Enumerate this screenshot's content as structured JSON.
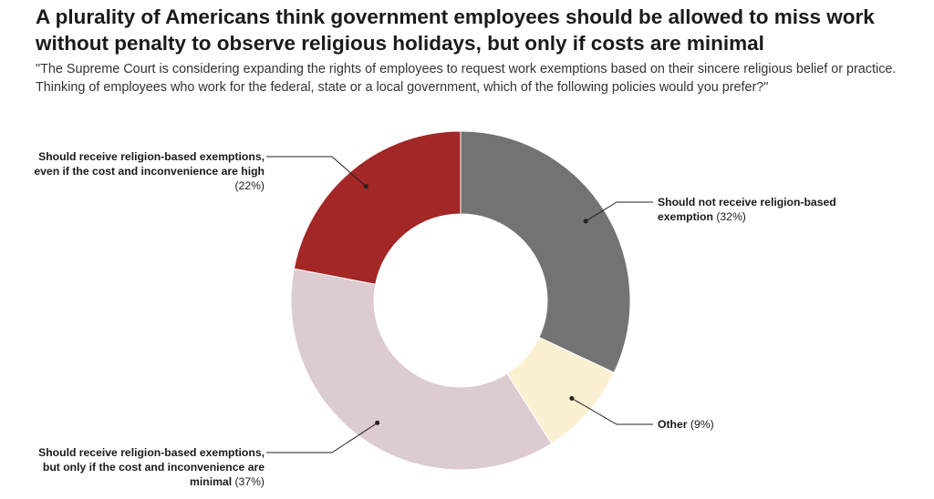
{
  "title": "A plurality of Americans think government employees should be allowed to miss work without penalty to observe religious holidays, but only if costs are minimal",
  "subtitle": "\"The Supreme Court is considering expanding the rights of employees to request work exemptions based on their sincere religious belief or practice. Thinking of employees who work for the federal, state or a local government, which of the following policies would you prefer?\"",
  "chart_data": {
    "type": "pie",
    "variant": "donut",
    "slices": [
      {
        "label": "Should not receive religion-based exemption",
        "value": 32,
        "value_label": "(32%)",
        "color": "#737373"
      },
      {
        "label": "Other",
        "value": 9,
        "value_label": "(9%)",
        "color": "#fcf0d2"
      },
      {
        "label": "Should receive religion-based exemptions, but only if the cost and inconvenience are minimal",
        "value": 37,
        "value_label": "(37%)",
        "color": "#dccbd0"
      },
      {
        "label": "Should receive religion-based exemptions, even if the cost and inconvenience are high",
        "value": 22,
        "value_label": "(22%)",
        "color": "#a32727"
      }
    ]
  }
}
